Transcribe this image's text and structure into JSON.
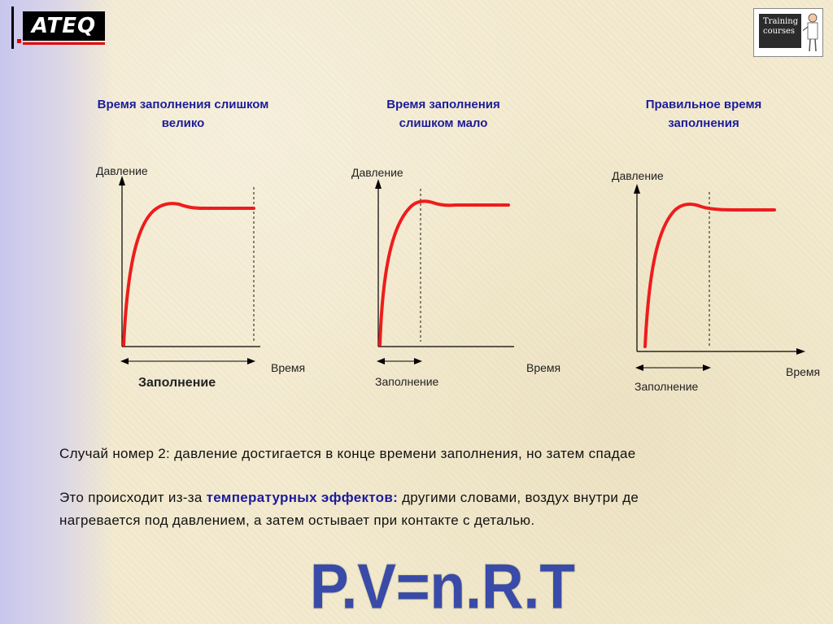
{
  "logo": {
    "text": "ATEQ"
  },
  "badge": {
    "line1": "Training",
    "line2": "courses"
  },
  "diagrams": [
    {
      "title_line1": "Время заполнения слишком",
      "title_line2": "велико",
      "ylabel": "Давление",
      "xlabel": "Время",
      "fill_label": "Заполнение",
      "fill_end_fraction": 0.97
    },
    {
      "title_line1": "Время заполнения",
      "title_line2": "слишком мало",
      "ylabel": "Давление",
      "xlabel": "Время",
      "fill_label": "Заполнение",
      "fill_end_fraction": 0.3
    },
    {
      "title_line1": "Правильное время",
      "title_line2": "заполнения",
      "ylabel": "Давление",
      "xlabel": "Время",
      "fill_label": "Заполнение",
      "fill_end_fraction": 0.5
    }
  ],
  "text": {
    "line1": "Случай номер 2: давление достигается в конце времени заполнения, но затем спадае",
    "line2_prefix": "Это происходит из-за ",
    "line2_emphasis": "температурных эффектов:",
    "line2_suffix": " другими словами, воздух внутри де",
    "line3": "нагревается под давлением, а затем остывает при контакте с деталью."
  },
  "formula": "P.V=n.R.T",
  "colors": {
    "curve": "#ee1c1c",
    "title": "#1c1c9a",
    "formula_fill": "#3a4aa8"
  }
}
